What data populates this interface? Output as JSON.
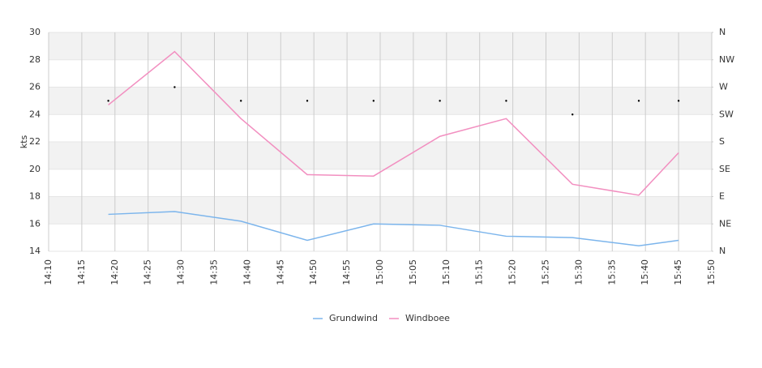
{
  "chart_data": {
    "type": "line",
    "y_label": "kts",
    "x": [
      "14:19",
      "14:29",
      "14:39",
      "14:49",
      "14:59",
      "15:09",
      "15:19",
      "15:29",
      "15:39",
      "15:45"
    ],
    "xlim": [
      "14:10",
      "15:50"
    ],
    "xticks": [
      "14:10",
      "14:15",
      "14:20",
      "14:25",
      "14:30",
      "14:35",
      "14:40",
      "14:45",
      "14:50",
      "14:55",
      "15:00",
      "15:05",
      "15:10",
      "15:15",
      "15:20",
      "15:25",
      "15:30",
      "15:35",
      "15:40",
      "15:45",
      "15:50"
    ],
    "ylim": [
      14,
      30
    ],
    "yticks": [
      14,
      16,
      18,
      20,
      22,
      24,
      26,
      28,
      30
    ],
    "y2lim": [
      0,
      360
    ],
    "y2ticks": [
      {
        "value": 0,
        "label": "N"
      },
      {
        "value": 45,
        "label": "NE"
      },
      {
        "value": 90,
        "label": "E"
      },
      {
        "value": 135,
        "label": "SE"
      },
      {
        "value": 180,
        "label": "S"
      },
      {
        "value": 225,
        "label": "SW"
      },
      {
        "value": 270,
        "label": "W"
      },
      {
        "value": 315,
        "label": "NW"
      },
      {
        "value": 360,
        "label": "N"
      }
    ],
    "series": [
      {
        "name": "Grundwind",
        "color": "#7cb5ec",
        "values": [
          16.7,
          16.9,
          16.2,
          14.8,
          16.0,
          15.9,
          15.1,
          15.0,
          14.4,
          14.8
        ]
      },
      {
        "name": "Windboee",
        "color": "#f28fc0",
        "values": [
          24.7,
          28.6,
          23.7,
          19.6,
          19.5,
          22.4,
          23.7,
          18.9,
          18.1,
          21.2
        ]
      }
    ],
    "direction": {
      "axis": "y2",
      "color": "#000000",
      "values": [
        247.5,
        270,
        247.5,
        247.5,
        247.5,
        247.5,
        247.5,
        225,
        247.5,
        247.5
      ]
    },
    "grid": true
  }
}
